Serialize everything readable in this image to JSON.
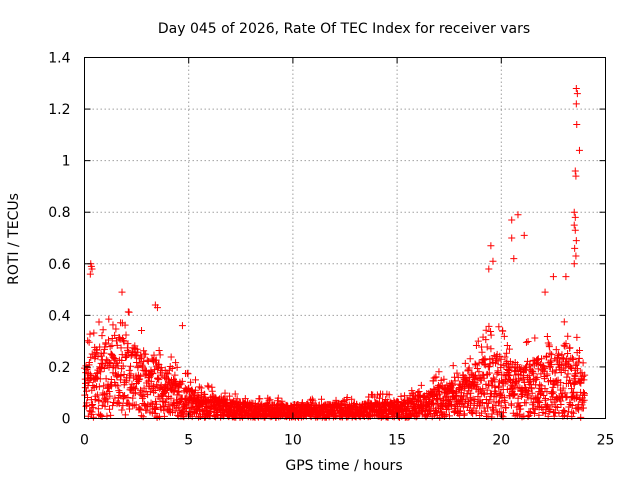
{
  "chart_data": {
    "type": "scatter",
    "title": "Day 045 of 2026, Rate Of TEC Index for receiver vars",
    "xlabel": "GPS time / hours",
    "ylabel": "ROTI / TECUs",
    "xlim": [
      0,
      25
    ],
    "ylim": [
      0,
      1.4
    ],
    "x_ticks": [
      0,
      5,
      10,
      15,
      20,
      25
    ],
    "y_ticks": [
      0,
      0.2,
      0.4,
      0.6,
      0.8,
      1,
      1.2,
      1.4
    ],
    "x_tick_labels": [
      "0",
      "5",
      "10",
      "15",
      "20",
      "25"
    ],
    "y_tick_labels": [
      "0",
      "0.2",
      "0.4",
      "0.6",
      "0.8",
      "1",
      "1.2",
      "1.4"
    ],
    "grid": true,
    "legend": "none",
    "marker": "plus",
    "color": "#ff0000",
    "envelope": {
      "x": [
        0,
        0.5,
        1,
        1.5,
        2,
        2.5,
        3,
        3.5,
        4,
        4.5,
        5,
        6,
        7,
        8,
        9,
        10,
        11,
        12,
        13,
        14,
        15,
        16,
        16.5,
        17,
        17.5,
        18,
        18.5,
        19,
        19.5,
        20,
        20.5,
        21,
        21.5,
        22,
        22.5,
        23,
        23.5,
        24
      ],
      "y": [
        0.2,
        0.28,
        0.3,
        0.33,
        0.3,
        0.27,
        0.25,
        0.22,
        0.18,
        0.15,
        0.12,
        0.09,
        0.07,
        0.06,
        0.055,
        0.055,
        0.055,
        0.055,
        0.06,
        0.065,
        0.07,
        0.09,
        0.11,
        0.13,
        0.15,
        0.17,
        0.2,
        0.23,
        0.26,
        0.25,
        0.22,
        0.2,
        0.22,
        0.25,
        0.27,
        0.26,
        0.24,
        0.15
      ]
    },
    "outliers": [
      {
        "x": 0.3,
        "y": 0.6
      },
      {
        "x": 0.33,
        "y": 0.59
      },
      {
        "x": 0.36,
        "y": 0.58
      },
      {
        "x": 0.28,
        "y": 0.56
      },
      {
        "x": 1.8,
        "y": 0.49
      },
      {
        "x": 3.4,
        "y": 0.44
      },
      {
        "x": 3.5,
        "y": 0.43
      },
      {
        "x": 4.7,
        "y": 0.36
      },
      {
        "x": 19.5,
        "y": 0.67
      },
      {
        "x": 19.6,
        "y": 0.61
      },
      {
        "x": 19.4,
        "y": 0.58
      },
      {
        "x": 20.5,
        "y": 0.77
      },
      {
        "x": 20.8,
        "y": 0.79
      },
      {
        "x": 20.5,
        "y": 0.7
      },
      {
        "x": 21.1,
        "y": 0.71
      },
      {
        "x": 20.6,
        "y": 0.62
      },
      {
        "x": 22.1,
        "y": 0.49
      },
      {
        "x": 22.5,
        "y": 0.55
      },
      {
        "x": 23.1,
        "y": 0.55
      },
      {
        "x": 23.6,
        "y": 1.28
      },
      {
        "x": 23.65,
        "y": 1.26
      },
      {
        "x": 23.6,
        "y": 1.22
      },
      {
        "x": 23.62,
        "y": 1.14
      },
      {
        "x": 23.75,
        "y": 1.04
      },
      {
        "x": 23.55,
        "y": 0.96
      },
      {
        "x": 23.58,
        "y": 0.94
      },
      {
        "x": 23.5,
        "y": 0.8
      },
      {
        "x": 23.55,
        "y": 0.78
      },
      {
        "x": 23.5,
        "y": 0.75
      },
      {
        "x": 23.55,
        "y": 0.73
      },
      {
        "x": 23.6,
        "y": 0.69
      },
      {
        "x": 23.52,
        "y": 0.66
      },
      {
        "x": 23.58,
        "y": 0.63
      },
      {
        "x": 23.5,
        "y": 0.6
      }
    ]
  }
}
